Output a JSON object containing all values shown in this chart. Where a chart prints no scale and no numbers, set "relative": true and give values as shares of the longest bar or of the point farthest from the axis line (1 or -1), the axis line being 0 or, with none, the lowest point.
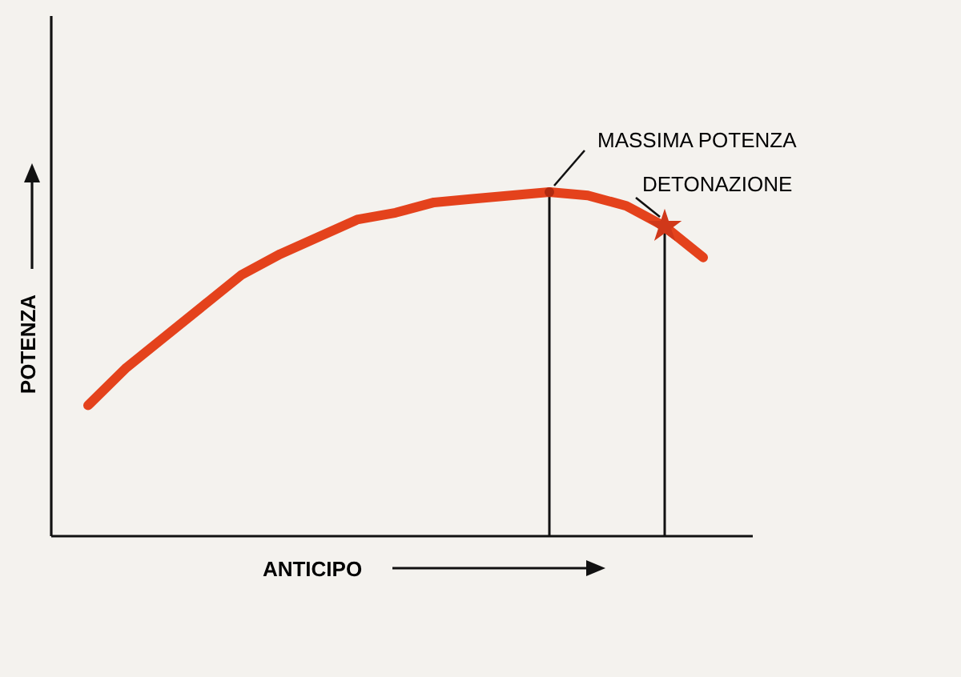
{
  "chart_data": {
    "type": "line",
    "relative": true,
    "xlabel": "ANTICIPO",
    "ylabel": "POTENZA",
    "categories": [
      null,
      null,
      null,
      null,
      null,
      null,
      null,
      null,
      null,
      null,
      null,
      null,
      null,
      null,
      null,
      null,
      null
    ],
    "series": [
      {
        "color": "#e4421c",
        "values": [
          0.38,
          0.49,
          0.58,
          0.67,
          0.76,
          0.82,
          0.87,
          0.92,
          0.94,
          0.97,
          0.98,
          0.99,
          1,
          0.99,
          0.96,
          0.9,
          0.81
        ]
      }
    ],
    "annotations": [
      "MASSIMA POTENZA",
      "DETONAZIONE"
    ],
    "grid": false,
    "marker": "none"
  }
}
